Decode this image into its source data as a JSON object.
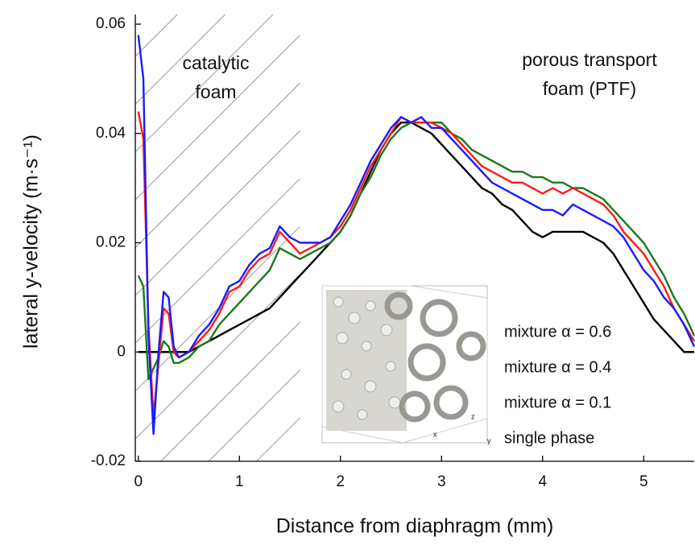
{
  "chart_data": {
    "type": "line",
    "xlabel": "Distance from diaphragm (mm)",
    "ylabel": "lateral y-velocity (m·s⁻¹)",
    "annotations": [
      [
        "catalytic",
        "foam"
      ],
      [
        "porous transport",
        "foam (PTF)"
      ]
    ],
    "hatched_xlim": [
      -0.03,
      1.6
    ],
    "xlim": [
      -0.03,
      5.5
    ],
    "ylim": [
      -0.02,
      0.06
    ],
    "xticks": [
      0,
      1,
      2,
      3,
      4,
      5
    ],
    "yticks": [
      -0.02,
      0,
      0.02,
      0.04,
      0.06
    ],
    "x": [
      0,
      0.05,
      0.1,
      0.15,
      0.2,
      0.25,
      0.3,
      0.35,
      0.4,
      0.5,
      0.6,
      0.7,
      0.8,
      0.9,
      1.0,
      1.1,
      1.2,
      1.3,
      1.4,
      1.5,
      1.6,
      1.7,
      1.8,
      1.9,
      2.0,
      2.1,
      2.2,
      2.3,
      2.4,
      2.5,
      2.6,
      2.7,
      2.8,
      2.9,
      3.0,
      3.1,
      3.2,
      3.3,
      3.4,
      3.5,
      3.6,
      3.7,
      3.8,
      3.9,
      4.0,
      4.1,
      4.2,
      4.3,
      4.4,
      4.5,
      4.6,
      4.7,
      4.8,
      4.9,
      5.0,
      5.1,
      5.2,
      5.3,
      5.4,
      5.5
    ],
    "series": [
      {
        "name": "single phase",
        "color": "#000000",
        "values": [
          0,
          0,
          0,
          0,
          0,
          0,
          0,
          0,
          0,
          0,
          0.001,
          0.002,
          0.003,
          0.004,
          0.005,
          0.006,
          0.007,
          0.008,
          0.01,
          0.012,
          0.014,
          0.016,
          0.018,
          0.02,
          0.022,
          0.025,
          0.029,
          0.033,
          0.037,
          0.04,
          0.042,
          0.042,
          0.041,
          0.04,
          0.038,
          0.036,
          0.034,
          0.032,
          0.03,
          0.029,
          0.027,
          0.026,
          0.024,
          0.022,
          0.021,
          0.022,
          0.022,
          0.022,
          0.022,
          0.021,
          0.02,
          0.018,
          0.015,
          0.012,
          0.009,
          0.006,
          0.004,
          0.002,
          0,
          0
        ]
      },
      {
        "name": "mixture α = 0.1",
        "color": "#1a7a1a",
        "values": [
          0.014,
          0.012,
          -0.005,
          -0.003,
          -0.001,
          0.002,
          0.001,
          -0.002,
          -0.002,
          -0.001,
          0.001,
          0.002,
          0.005,
          0.007,
          0.009,
          0.011,
          0.013,
          0.015,
          0.019,
          0.018,
          0.017,
          0.018,
          0.019,
          0.02,
          0.022,
          0.025,
          0.029,
          0.032,
          0.036,
          0.039,
          0.041,
          0.042,
          0.042,
          0.042,
          0.042,
          0.04,
          0.039,
          0.037,
          0.036,
          0.035,
          0.034,
          0.033,
          0.033,
          0.032,
          0.032,
          0.031,
          0.031,
          0.03,
          0.03,
          0.029,
          0.028,
          0.026,
          0.024,
          0.022,
          0.02,
          0.017,
          0.014,
          0.01,
          0.007,
          0.003
        ]
      },
      {
        "name": "mixture α = 0.4",
        "color": "#ff1a1a",
        "values": [
          0.044,
          0.039,
          0.005,
          -0.012,
          -0.002,
          0.008,
          0.007,
          0,
          -0.001,
          0,
          0.002,
          0.004,
          0.007,
          0.011,
          0.012,
          0.015,
          0.017,
          0.018,
          0.022,
          0.02,
          0.018,
          0.019,
          0.02,
          0.021,
          0.023,
          0.026,
          0.03,
          0.034,
          0.037,
          0.04,
          0.043,
          0.042,
          0.042,
          0.042,
          0.041,
          0.04,
          0.038,
          0.036,
          0.034,
          0.033,
          0.032,
          0.031,
          0.031,
          0.03,
          0.029,
          0.03,
          0.029,
          0.03,
          0.029,
          0.028,
          0.027,
          0.025,
          0.022,
          0.02,
          0.018,
          0.015,
          0.012,
          0.008,
          0.005,
          0.002
        ]
      },
      {
        "name": "mixture α = 0.6",
        "color": "#1a1aff",
        "values": [
          0.058,
          0.05,
          0.003,
          -0.015,
          0.0,
          0.011,
          0.01,
          0.001,
          -0.001,
          0,
          0.003,
          0.005,
          0.008,
          0.012,
          0.013,
          0.016,
          0.018,
          0.019,
          0.023,
          0.021,
          0.02,
          0.02,
          0.02,
          0.021,
          0.024,
          0.027,
          0.031,
          0.035,
          0.038,
          0.041,
          0.043,
          0.042,
          0.043,
          0.041,
          0.041,
          0.039,
          0.037,
          0.035,
          0.033,
          0.031,
          0.03,
          0.029,
          0.028,
          0.027,
          0.026,
          0.026,
          0.025,
          0.027,
          0.026,
          0.025,
          0.024,
          0.023,
          0.021,
          0.018,
          0.015,
          0.013,
          0.01,
          0.008,
          0.005,
          0.001
        ]
      }
    ]
  }
}
